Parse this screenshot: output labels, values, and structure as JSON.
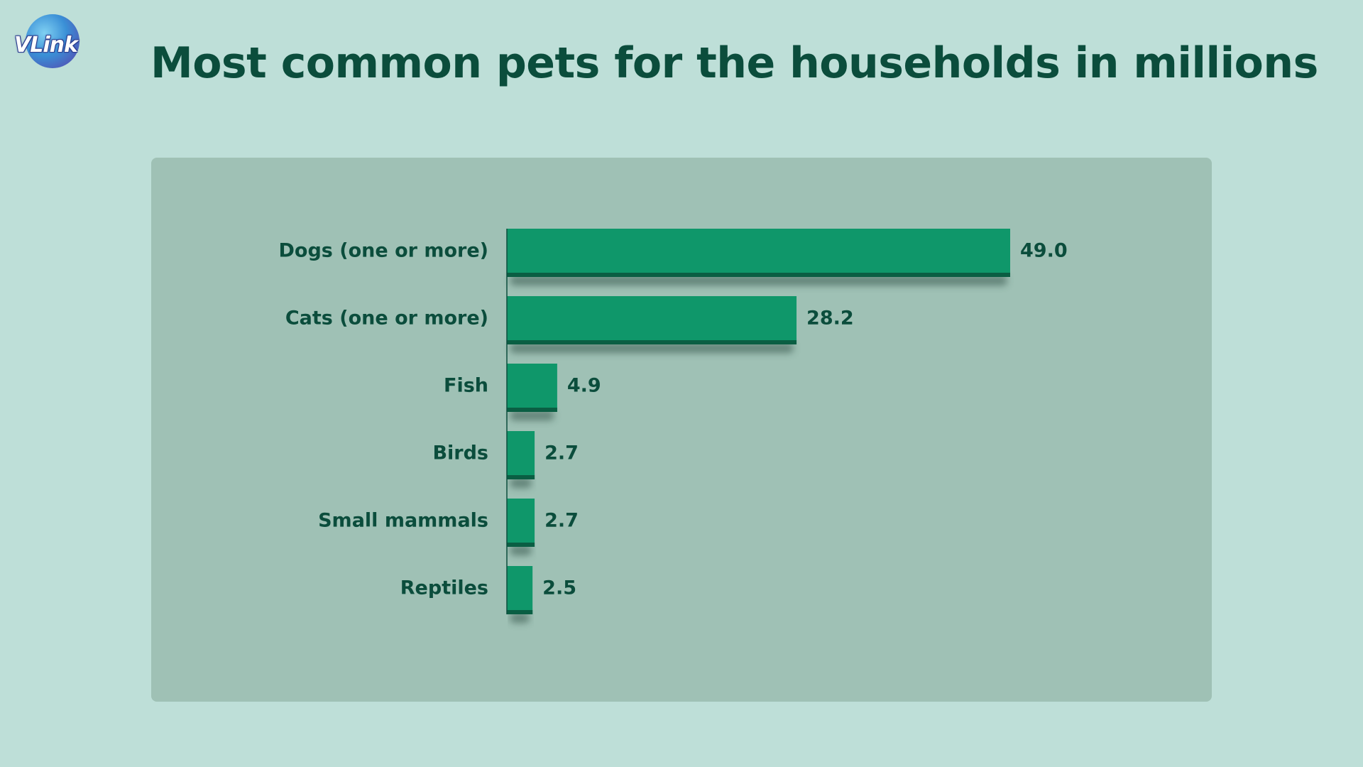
{
  "logo": {
    "text": "VLink",
    "icon": "globe-icon",
    "colors": {
      "globe_light": "#7fd0f2",
      "globe_mid": "#3a8fd6",
      "globe_dark": "#5b3ca8"
    }
  },
  "colors": {
    "background": "#bedfd8",
    "panel": "#9fc1b5",
    "bar": "#0f976a",
    "bar_edge": "#0a5e43",
    "text": "#0b4d3c"
  },
  "chart_data": {
    "type": "bar",
    "orientation": "horizontal",
    "title": "Most common pets for the households in millions",
    "xlabel": "",
    "ylabel": "",
    "categories": [
      "Dogs (one or more)",
      "Cats (one or more)",
      "Fish",
      "Birds",
      "Small mammals",
      "Reptiles"
    ],
    "values": [
      49.0,
      28.2,
      4.9,
      2.7,
      2.7,
      2.5
    ],
    "value_labels": [
      "49.0",
      "28.2",
      "4.9",
      "2.7",
      "2.7",
      "2.5"
    ],
    "xlim": [
      0,
      49.0
    ],
    "grid": false,
    "legend": "none",
    "data_labels": true
  }
}
